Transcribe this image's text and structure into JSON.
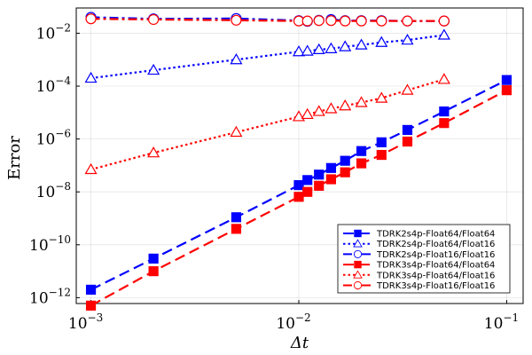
{
  "chart_data": {
    "type": "line",
    "xscale": "log",
    "yscale": "log",
    "xlabel": "Δt",
    "ylabel": "Error",
    "xlim": [
      0.00085,
      0.12
    ],
    "ylim": [
      6e-13,
      0.09
    ],
    "grid": true,
    "legend_position": "bottom-right",
    "x_ticks": [
      {
        "base": "10",
        "exp": "−3",
        "value": 0.001
      },
      {
        "base": "10",
        "exp": "−2",
        "value": 0.01
      },
      {
        "base": "10",
        "exp": "−1",
        "value": 0.1
      }
    ],
    "y_ticks": [
      {
        "base": "10",
        "exp": "−12",
        "value": 1e-12
      },
      {
        "base": "10",
        "exp": "−10",
        "value": 1e-10
      },
      {
        "base": "10",
        "exp": "−8",
        "value": 1e-08
      },
      {
        "base": "10",
        "exp": "−6",
        "value": 1e-06
      },
      {
        "base": "10",
        "exp": "−4",
        "value": 0.0001
      },
      {
        "base": "10",
        "exp": "−2",
        "value": 0.01
      }
    ],
    "series": [
      {
        "name": "TDRK2s4p-Float64/Float64",
        "color": "#0000ff",
        "marker": "square",
        "filled": true,
        "dash": "dashed",
        "x": [
          0.001,
          0.002,
          0.005,
          0.01,
          0.011,
          0.0125,
          0.0143,
          0.0167,
          0.02,
          0.025,
          0.0333,
          0.05,
          0.1
        ],
        "y": [
          2e-12,
          3e-11,
          1.1e-09,
          1.8e-08,
          2.8e-08,
          4.5e-08,
          8e-08,
          1.5e-07,
          3.5e-07,
          7.5e-07,
          2.2e-06,
          1.1e-05,
          0.00017
        ]
      },
      {
        "name": "TDRK2s4p-Float64/Float16",
        "color": "#0000ff",
        "marker": "triangle",
        "filled": false,
        "dash": "dotted",
        "x": [
          0.001,
          0.002,
          0.005,
          0.01,
          0.011,
          0.0125,
          0.0143,
          0.0167,
          0.02,
          0.025,
          0.0333,
          0.05
        ],
        "y": [
          0.0002,
          0.0004,
          0.001,
          0.002,
          0.0021,
          0.0024,
          0.0026,
          0.0031,
          0.0036,
          0.0045,
          0.0055,
          0.0085
        ]
      },
      {
        "name": "TDRK2s4p-Float16/Float16",
        "color": "#0000ff",
        "marker": "circle",
        "filled": false,
        "dash": "dashdot",
        "x": [
          0.001,
          0.002,
          0.005,
          0.01,
          0.011,
          0.0125,
          0.0143,
          0.0167,
          0.02,
          0.025,
          0.0333,
          0.05
        ],
        "y": [
          0.04,
          0.035,
          0.036,
          0.03,
          0.028,
          0.031,
          0.033,
          0.03,
          0.03,
          0.03,
          0.029,
          0.029
        ]
      },
      {
        "name": "TDRK3s4p-Float64/Float64",
        "color": "#ff0000",
        "marker": "square",
        "filled": true,
        "dash": "dashed",
        "x": [
          0.001,
          0.002,
          0.005,
          0.01,
          0.011,
          0.0125,
          0.0143,
          0.0167,
          0.02,
          0.025,
          0.0333,
          0.05,
          0.1
        ],
        "y": [
          5e-13,
          1e-11,
          4e-10,
          6.5e-09,
          1e-08,
          1.7e-08,
          3e-08,
          5.5e-08,
          1.2e-07,
          2.5e-07,
          8e-07,
          4e-06,
          7e-05
        ]
      },
      {
        "name": "TDRK3s4p-Float64/Float16",
        "color": "#ff0000",
        "marker": "triangle",
        "filled": false,
        "dash": "dotted",
        "x": [
          0.001,
          0.002,
          0.005,
          0.01,
          0.011,
          0.0125,
          0.0143,
          0.0167,
          0.02,
          0.025,
          0.0333,
          0.05
        ],
        "y": [
          7e-08,
          3e-07,
          1.8e-06,
          7e-06,
          8.5e-06,
          1.1e-05,
          1.4e-05,
          1.8e-05,
          2.4e-05,
          3.5e-05,
          7e-05,
          0.00018
        ]
      },
      {
        "name": "TDRK3s4p-Float16/Float16",
        "color": "#ff0000",
        "marker": "circle",
        "filled": false,
        "dash": "dashdot",
        "x": [
          0.001,
          0.002,
          0.005,
          0.01,
          0.011,
          0.0125,
          0.0143,
          0.0167,
          0.02,
          0.025,
          0.0333,
          0.05
        ],
        "y": [
          0.035,
          0.033,
          0.031,
          0.029,
          0.029,
          0.03,
          0.03,
          0.029,
          0.029,
          0.029,
          0.029,
          0.029
        ]
      }
    ]
  }
}
